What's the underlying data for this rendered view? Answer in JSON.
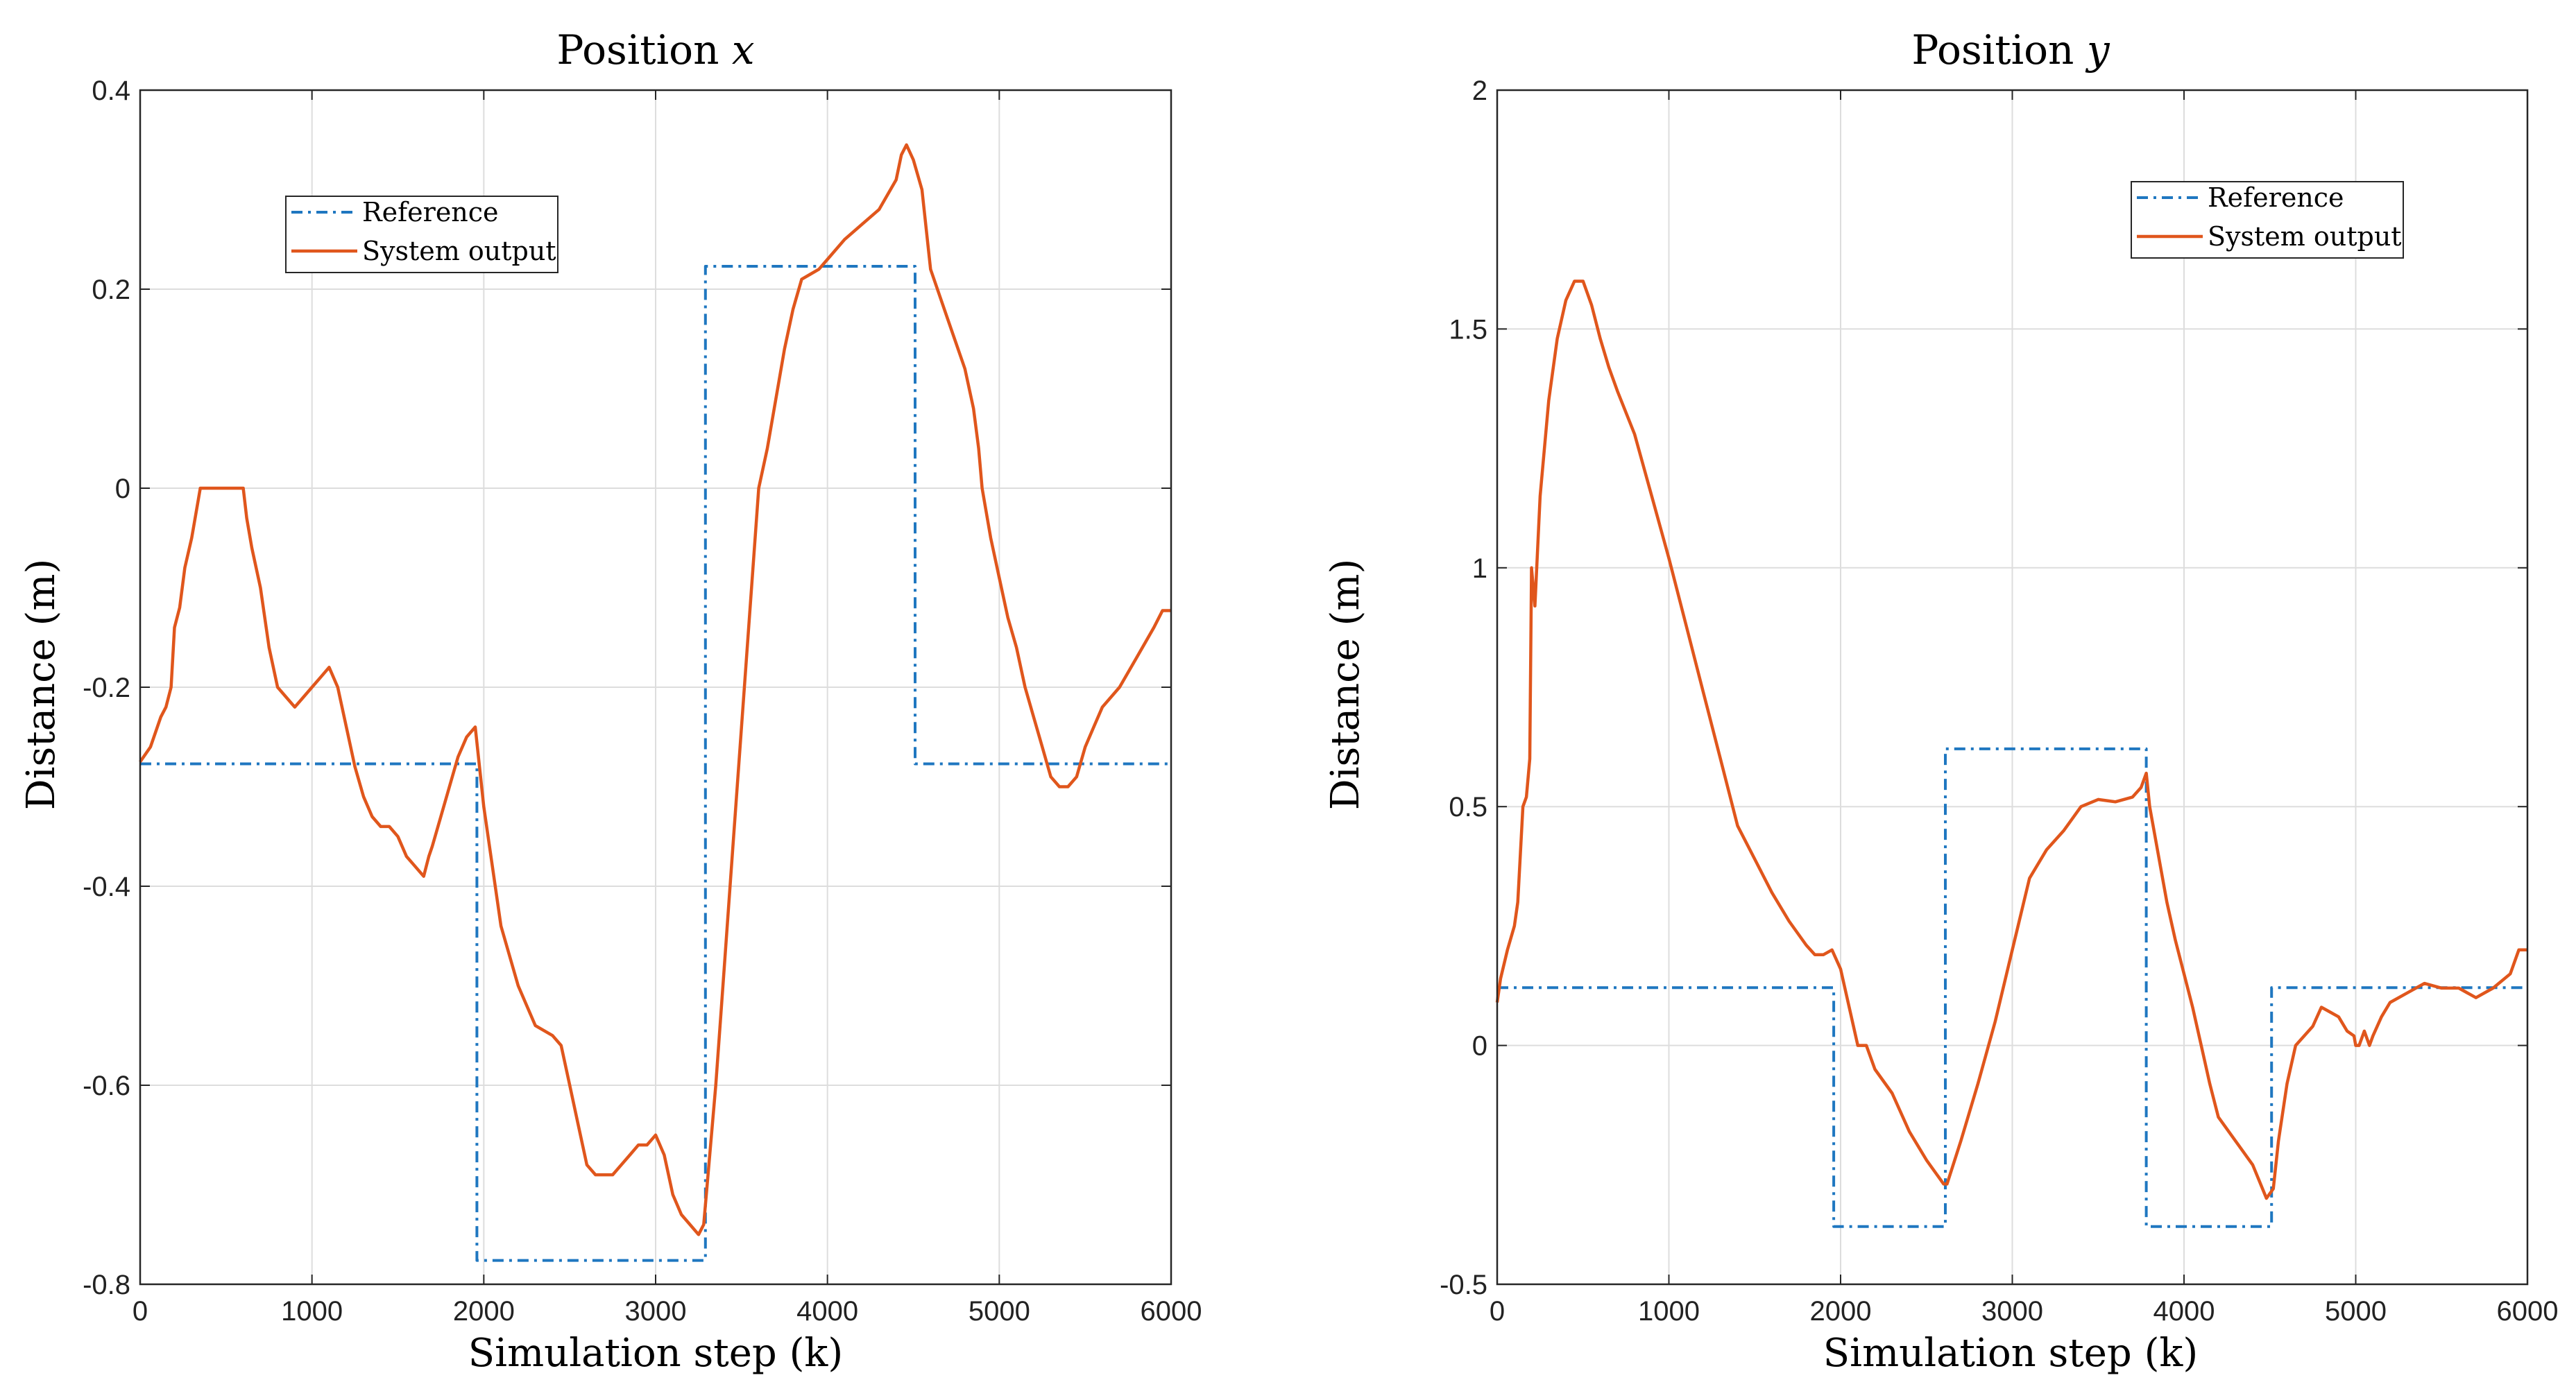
{
  "colors": {
    "reference": "#1f77c0",
    "output": "#e0561c",
    "grid": "#dddddd",
    "axis": "#262626"
  },
  "chart_data": [
    {
      "type": "line",
      "title": "Position x",
      "title_parts": {
        "prefix": "Position ",
        "var": "x"
      },
      "xlabel": "Simulation step (k)",
      "ylabel": "Distance (m)",
      "xlim": [
        0,
        6000
      ],
      "ylim": [
        -0.8,
        0.4
      ],
      "xticks": [
        0,
        1000,
        2000,
        3000,
        4000,
        5000,
        6000
      ],
      "yticks": [
        -0.8,
        -0.6,
        -0.4,
        -0.2,
        0,
        0.2,
        0.4
      ],
      "xtick_labels": [
        "0",
        "1000",
        "2000",
        "3000",
        "4000",
        "5000",
        "6000"
      ],
      "ytick_labels": [
        "-0.8",
        "-0.6",
        "-0.4",
        "-0.2",
        "0",
        "0.2",
        "0.4"
      ],
      "grid": true,
      "legend": {
        "position": "top-left",
        "entries": [
          "Reference",
          "System output"
        ]
      },
      "series": [
        {
          "name": "Reference",
          "style": "dash-dot",
          "x": [
            0,
            1960,
            1960,
            3290,
            3290,
            4510,
            4510,
            6000
          ],
          "y": [
            -0.277,
            -0.277,
            -0.776,
            -0.776,
            0.223,
            0.223,
            -0.277,
            -0.277
          ]
        },
        {
          "name": "System output",
          "style": "solid",
          "x": [
            0,
            60,
            120,
            150,
            180,
            200,
            230,
            260,
            300,
            350,
            400,
            500,
            600,
            620,
            650,
            700,
            750,
            800,
            850,
            900,
            950,
            1000,
            1050,
            1100,
            1150,
            1200,
            1250,
            1300,
            1350,
            1400,
            1450,
            1500,
            1550,
            1600,
            1650,
            1680,
            1700,
            1750,
            1800,
            1850,
            1900,
            1950,
            2000,
            2050,
            2100,
            2200,
            2300,
            2400,
            2450,
            2500,
            2550,
            2600,
            2650,
            2700,
            2750,
            2800,
            2850,
            2900,
            2950,
            3000,
            3050,
            3100,
            3150,
            3200,
            3250,
            3280,
            3300,
            3350,
            3400,
            3450,
            3500,
            3550,
            3600,
            3650,
            3700,
            3750,
            3800,
            3850,
            3900,
            3950,
            4000,
            4100,
            4200,
            4300,
            4400,
            4430,
            4460,
            4500,
            4550,
            4600,
            4700,
            4800,
            4850,
            4880,
            4900,
            4950,
            5000,
            5050,
            5100,
            5150,
            5200,
            5250,
            5300,
            5350,
            5400,
            5450,
            5500,
            5550,
            5600,
            5700,
            5800,
            5900,
            5950,
            6000
          ],
          "y": [
            -0.275,
            -0.26,
            -0.23,
            -0.22,
            -0.2,
            -0.14,
            -0.12,
            -0.08,
            -0.05,
            0,
            0,
            0,
            0,
            -0.03,
            -0.06,
            -0.1,
            -0.16,
            -0.2,
            -0.21,
            -0.22,
            -0.21,
            -0.2,
            -0.19,
            -0.18,
            -0.2,
            -0.24,
            -0.28,
            -0.31,
            -0.33,
            -0.34,
            -0.34,
            -0.35,
            -0.37,
            -0.38,
            -0.39,
            -0.37,
            -0.36,
            -0.33,
            -0.3,
            -0.27,
            -0.25,
            -0.24,
            -0.32,
            -0.38,
            -0.44,
            -0.5,
            -0.54,
            -0.55,
            -0.56,
            -0.6,
            -0.64,
            -0.68,
            -0.69,
            -0.69,
            -0.69,
            -0.68,
            -0.67,
            -0.66,
            -0.66,
            -0.65,
            -0.67,
            -0.71,
            -0.73,
            -0.74,
            -0.75,
            -0.74,
            -0.7,
            -0.6,
            -0.48,
            -0.36,
            -0.24,
            -0.12,
            0,
            0.04,
            0.09,
            0.14,
            0.18,
            0.21,
            0.215,
            0.22,
            0.23,
            0.25,
            0.265,
            0.28,
            0.31,
            0.335,
            0.345,
            0.33,
            0.3,
            0.22,
            0.17,
            0.12,
            0.08,
            0.04,
            0,
            -0.05,
            -0.09,
            -0.13,
            -0.16,
            -0.2,
            -0.23,
            -0.26,
            -0.29,
            -0.3,
            -0.3,
            -0.29,
            -0.26,
            -0.24,
            -0.22,
            -0.2,
            -0.17,
            -0.14,
            -0.123,
            -0.123
          ]
        }
      ]
    },
    {
      "type": "line",
      "title": "Position y",
      "title_parts": {
        "prefix": "Position ",
        "var": "y"
      },
      "xlabel": "Simulation step (k)",
      "ylabel": "Distance (m)",
      "xlim": [
        0,
        6000
      ],
      "ylim": [
        -0.5,
        2
      ],
      "xticks": [
        0,
        1000,
        2000,
        3000,
        4000,
        5000,
        6000
      ],
      "yticks": [
        -0.5,
        0,
        0.5,
        1,
        1.5,
        2
      ],
      "xtick_labels": [
        "0",
        "1000",
        "2000",
        "3000",
        "4000",
        "5000",
        "6000"
      ],
      "ytick_labels": [
        "-0.5",
        "0",
        "0.5",
        "1",
        "1.5",
        "2"
      ],
      "grid": true,
      "legend": {
        "position": "top-right",
        "entries": [
          "Reference",
          "System output"
        ]
      },
      "series": [
        {
          "name": "Reference",
          "style": "dash-dot",
          "x": [
            0,
            1960,
            1960,
            2610,
            2610,
            3780,
            3780,
            4510,
            4510,
            6000
          ],
          "y": [
            0.121,
            0.121,
            -0.379,
            -0.379,
            0.621,
            0.621,
            -0.379,
            -0.379,
            0.121,
            0.121
          ]
        },
        {
          "name": "System output",
          "style": "solid",
          "x": [
            0,
            20,
            60,
            100,
            120,
            150,
            170,
            190,
            200,
            220,
            250,
            300,
            350,
            400,
            450,
            500,
            550,
            600,
            650,
            700,
            800,
            900,
            1000,
            1100,
            1200,
            1300,
            1400,
            1500,
            1600,
            1700,
            1800,
            1850,
            1900,
            1950,
            2000,
            2050,
            2100,
            2150,
            2200,
            2300,
            2400,
            2500,
            2600,
            2620,
            2700,
            2800,
            2900,
            3000,
            3100,
            3200,
            3300,
            3400,
            3500,
            3600,
            3700,
            3750,
            3780,
            3800,
            3850,
            3900,
            3950,
            4000,
            4050,
            4100,
            4150,
            4200,
            4300,
            4400,
            4480,
            4520,
            4550,
            4600,
            4650,
            4700,
            4750,
            4800,
            4850,
            4900,
            4950,
            4990,
            5000,
            5020,
            5050,
            5080,
            5100,
            5150,
            5200,
            5300,
            5400,
            5500,
            5600,
            5700,
            5800,
            5900,
            5950,
            6000
          ],
          "y": [
            0.09,
            0.14,
            0.2,
            0.25,
            0.3,
            0.5,
            0.52,
            0.6,
            1.0,
            0.92,
            1.15,
            1.35,
            1.48,
            1.56,
            1.6,
            1.6,
            1.55,
            1.48,
            1.42,
            1.37,
            1.28,
            1.15,
            1.02,
            0.88,
            0.74,
            0.6,
            0.46,
            0.39,
            0.32,
            0.26,
            0.21,
            0.19,
            0.19,
            0.2,
            0.16,
            0.08,
            0,
            0,
            -0.05,
            -0.1,
            -0.18,
            -0.24,
            -0.29,
            -0.29,
            -0.2,
            -0.08,
            0.05,
            0.2,
            0.35,
            0.41,
            0.45,
            0.5,
            0.515,
            0.51,
            0.52,
            0.54,
            0.57,
            0.5,
            0.4,
            0.3,
            0.22,
            0.15,
            0.08,
            0,
            -0.08,
            -0.15,
            -0.2,
            -0.25,
            -0.32,
            -0.3,
            -0.2,
            -0.08,
            0,
            0.02,
            0.04,
            0.08,
            0.07,
            0.06,
            0.03,
            0.02,
            0,
            0,
            0.03,
            0,
            0.02,
            0.06,
            0.09,
            0.11,
            0.13,
            0.12,
            0.12,
            0.1,
            0.12,
            0.15,
            0.2,
            0.2
          ]
        }
      ]
    }
  ]
}
